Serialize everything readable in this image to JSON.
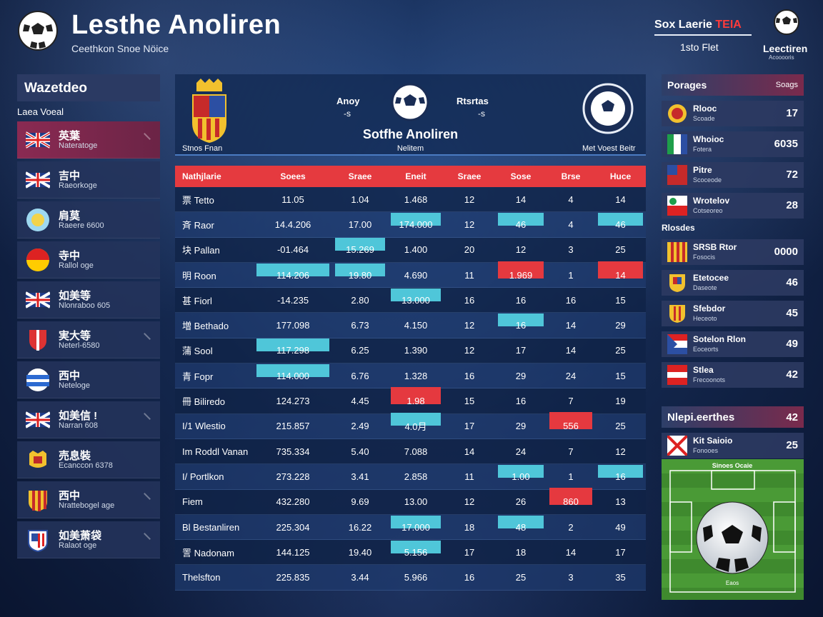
{
  "header": {
    "title": "Lesthe Anoliren",
    "subtitle": "Ceethkon Snoe Nöice",
    "right_top": "Sox Laerie",
    "right_top_red": "TEIA",
    "right_bottom": "1sto Flet",
    "logo_text": "Leectiren",
    "logo_sub": "Acooooris"
  },
  "sidebar": {
    "title": "Wazetdeo",
    "subtitle": "Laea Voeal",
    "items": [
      {
        "name": "英葉",
        "sub": "Nateratoge"
      },
      {
        "name": "吉中",
        "sub": "Raeorkoge"
      },
      {
        "name": "肩莫",
        "sub": "Raeere 6600"
      },
      {
        "name": "寺中",
        "sub": "Rallol oge"
      },
      {
        "name": "如美等",
        "sub": "Nlonraboo 605"
      },
      {
        "name": "実大等",
        "sub": "Neterl-6580"
      },
      {
        "name": "西中",
        "sub": "Neteloge"
      },
      {
        "name": "如美信 !",
        "sub": "Narran 608"
      },
      {
        "name": "売息裝",
        "sub": "Ecanccon 6378"
      },
      {
        "name": "西中",
        "sub": "Nrattebogel age"
      },
      {
        "name": "如美萧袋",
        "sub": "Ralaot oge"
      }
    ]
  },
  "match": {
    "home_label": "Stnos Fnan",
    "score_a": "Anoy",
    "score_a_sub": "-s",
    "score_b": "Rtsrtas",
    "score_b_sub": "-s",
    "title": "Sotfhe Anoliren",
    "subtitle": "Nelitem",
    "away_label": "Met Voest Beitr"
  },
  "table": {
    "headers": [
      "Nathjlarie",
      "Soees",
      "Sraee",
      "Eneit",
      "Sraee",
      "Sose",
      "Brse",
      "Huce"
    ],
    "rows": [
      [
        "票 Tetto",
        "11.05",
        "1.04",
        "1.468",
        "12",
        "14",
        "4",
        "14"
      ],
      [
        "斉 Raor",
        "14.4.206",
        "17.00",
        "174.000",
        "12",
        "46",
        "4",
        "46"
      ],
      [
        "块 Pallan",
        "-01.464",
        "15.269",
        "1.400",
        "20",
        "12",
        "3",
        "25"
      ],
      [
        "明 Roon",
        "114.206",
        "19.80",
        "4.690",
        "11",
        "1.969",
        "1",
        "14"
      ],
      [
        "甚 Fiorl",
        "-14.235",
        "2.80",
        "13.000",
        "16",
        "16",
        "16",
        "15"
      ],
      [
        "増 Bethado",
        "177.098",
        "6.73",
        "4.150",
        "12",
        "16",
        "14",
        "29"
      ],
      [
        "蒲 Sool",
        "117.298",
        "6.25",
        "1.390",
        "12",
        "17",
        "14",
        "25"
      ],
      [
        "青 Fopr",
        "114.000",
        "6.76",
        "1.328",
        "16",
        "29",
        "24",
        "15"
      ],
      [
        "冊 Biliredo",
        "124.273",
        "4.45",
        "1.98",
        "15",
        "16",
        "7",
        "19"
      ],
      [
        "I/1 Wlestio",
        "215.857",
        "2.49",
        "4.0月",
        "17",
        "29",
        "556",
        "25"
      ],
      [
        "Im Roddl Vanan",
        "735.334",
        "5.40",
        "7.088",
        "14",
        "24",
        "7",
        "12"
      ],
      [
        "I/ Portlkon",
        "273.228",
        "3.41",
        "2.858",
        "11",
        "1.00",
        "1",
        "16"
      ],
      [
        "Fiem",
        "432.280",
        "9.69",
        "13.00",
        "12",
        "26",
        "860",
        "13"
      ],
      [
        "Bl Bestanliren",
        "225.304",
        "16.22",
        "17.000",
        "18",
        "48",
        "2",
        "49"
      ],
      [
        "詈 Nadonam",
        "144.125",
        "19.40",
        "5.156",
        "17",
        "18",
        "14",
        "17"
      ],
      [
        "Thelsfton",
        "225.835",
        "3.44",
        "5.966",
        "16",
        "25",
        "3",
        "35"
      ]
    ]
  },
  "right_sidebar": {
    "title": "Porages",
    "title_small": "Soags",
    "items_a": [
      {
        "name": "Rlooc",
        "sub": "Scoade",
        "val": "17"
      },
      {
        "name": "Whoioc",
        "sub": "Fotera",
        "val": "6035"
      },
      {
        "name": "Pitre",
        "sub": "Scoceode",
        "val": "72"
      },
      {
        "name": "Wrotelov",
        "sub": "Cotseoreo",
        "val": "28"
      }
    ],
    "section": "Rlosdes",
    "items_b": [
      {
        "name": "SRSB Rtor",
        "sub": "Fosocis",
        "val": "0000"
      },
      {
        "name": "Etetocee",
        "sub": "Daseote",
        "val": "46"
      },
      {
        "name": "Sfebdor",
        "sub": "Heceoto",
        "val": "45"
      },
      {
        "name": "Sotelon Rlon",
        "sub": "Eoceorts",
        "val": "49"
      },
      {
        "name": "Stlea",
        "sub": "Frecoonots",
        "val": "42"
      }
    ],
    "title2": "Nlepi.eerthes",
    "title2_val": "42",
    "last_item": {
      "name": "Kit Saioio",
      "sub": "Fonooes",
      "val": "25"
    },
    "pitch_label": "Sinoes Ocaie",
    "pitch_sub": "Eaos"
  },
  "colors": {
    "accent_red": "#e53a3f",
    "accent_cyan": "#4fc6d9",
    "active_item": "#8a2a52"
  }
}
